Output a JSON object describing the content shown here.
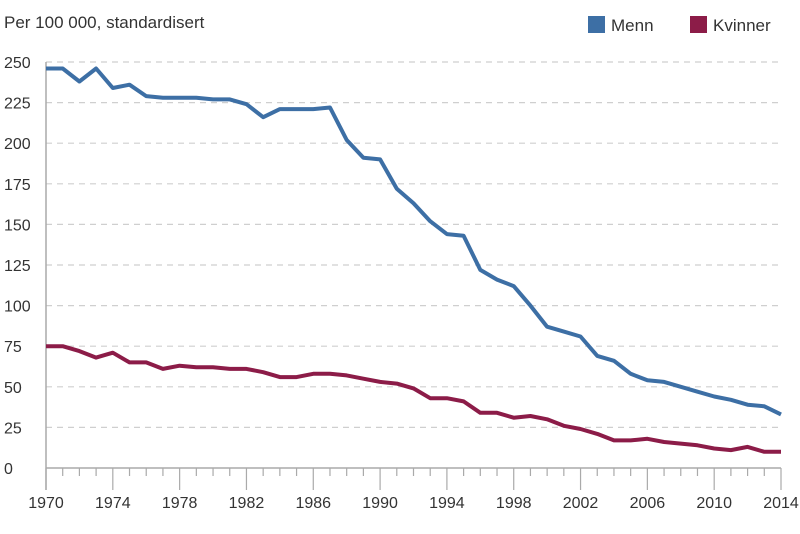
{
  "chart_data": {
    "type": "line",
    "ylabel": "Per 100 000, standardisert",
    "ylim": [
      0,
      250
    ],
    "yticks": [
      0,
      25,
      50,
      75,
      100,
      125,
      150,
      175,
      200,
      225,
      250
    ],
    "xlim": [
      1970,
      2014
    ],
    "xticks": [
      1970,
      1974,
      1978,
      1982,
      1986,
      1990,
      1994,
      1998,
      2002,
      2006,
      2010,
      2014
    ],
    "grid": "horizontal dashed",
    "legend": "top-right",
    "x": [
      1970,
      1971,
      1972,
      1973,
      1974,
      1975,
      1976,
      1977,
      1978,
      1979,
      1980,
      1981,
      1982,
      1983,
      1984,
      1985,
      1986,
      1987,
      1988,
      1989,
      1990,
      1991,
      1992,
      1993,
      1994,
      1995,
      1996,
      1997,
      1998,
      1999,
      2000,
      2001,
      2002,
      2003,
      2004,
      2005,
      2006,
      2007,
      2008,
      2009,
      2010,
      2011,
      2012,
      2013,
      2014
    ],
    "series": [
      {
        "name": "Menn",
        "color": "#3d6fa5",
        "values": [
          246,
          246,
          238,
          246,
          234,
          236,
          229,
          228,
          228,
          228,
          227,
          227,
          224,
          216,
          221,
          221,
          221,
          222,
          202,
          191,
          190,
          172,
          163,
          152,
          144,
          143,
          122,
          116,
          112,
          100,
          87,
          84,
          81,
          69,
          66,
          58,
          54,
          53,
          50,
          47,
          44,
          42,
          39,
          38,
          33
        ]
      },
      {
        "name": "Kvinner",
        "color": "#8c1c48",
        "values": [
          75,
          75,
          72,
          68,
          71,
          65,
          65,
          61,
          63,
          62,
          62,
          61,
          61,
          59,
          56,
          56,
          58,
          58,
          57,
          55,
          53,
          52,
          49,
          43,
          43,
          41,
          34,
          34,
          31,
          32,
          30,
          26,
          24,
          21,
          17,
          17,
          18,
          16,
          15,
          14,
          12,
          11,
          13,
          10,
          10
        ]
      }
    ]
  }
}
